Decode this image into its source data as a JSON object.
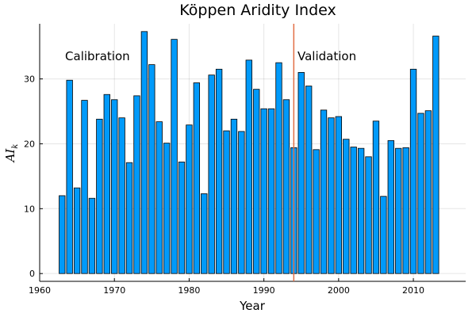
{
  "chart_data": {
    "type": "bar",
    "title": "Köppen Aridity Index",
    "xlabel": "Year",
    "ylabel_main": "AI",
    "ylabel_sub": "k",
    "x": [
      1963,
      1964,
      1965,
      1966,
      1967,
      1968,
      1969,
      1970,
      1971,
      1972,
      1973,
      1974,
      1975,
      1976,
      1977,
      1978,
      1979,
      1980,
      1981,
      1982,
      1983,
      1984,
      1985,
      1986,
      1987,
      1988,
      1989,
      1990,
      1991,
      1992,
      1993,
      1994,
      1995,
      1996,
      1997,
      1998,
      1999,
      2000,
      2001,
      2002,
      2003,
      2004,
      2005,
      2006,
      2007,
      2008,
      2009,
      2010,
      2011,
      2012,
      2013
    ],
    "values": [
      12.0,
      29.8,
      13.2,
      26.7,
      11.6,
      23.8,
      27.6,
      26.8,
      24.0,
      17.1,
      27.4,
      37.3,
      32.2,
      23.4,
      20.1,
      36.1,
      17.2,
      22.9,
      29.4,
      12.3,
      30.6,
      31.5,
      22.0,
      23.8,
      21.9,
      32.9,
      28.4,
      25.4,
      25.4,
      32.5,
      26.8,
      19.4,
      31.0,
      28.9,
      19.1,
      25.2,
      24.0,
      24.2,
      20.7,
      19.5,
      19.3,
      18.0,
      23.5,
      11.9,
      20.5,
      19.3,
      19.4,
      31.5,
      24.7,
      25.1,
      36.6
    ],
    "xlim": [
      1960,
      2017
    ],
    "ylim": [
      -1.2,
      38.5
    ],
    "xticks": [
      1960,
      1970,
      1980,
      1990,
      2000,
      2010
    ],
    "yticks": [
      0,
      10,
      20,
      30
    ],
    "grid": true,
    "bar_color": "#009AFA",
    "divider": {
      "x": 1994,
      "color": "#E26F46"
    },
    "annotations": [
      {
        "text": "Calibration",
        "x": 1963.4,
        "y": 33.5
      },
      {
        "text": "Validation",
        "x": 1994.5,
        "y": 33.5
      }
    ]
  }
}
